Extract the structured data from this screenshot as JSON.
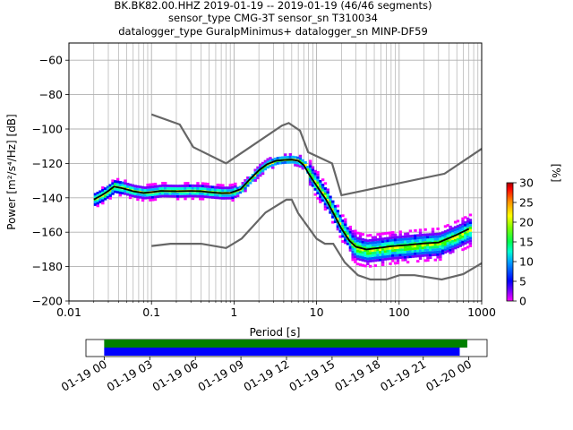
{
  "title_lines": [
    "BK.BK82.00.HHZ   2019-01-19 -- 2019-01-19  (46/46 segments)",
    "sensor_type CMG-3T sensor_sn T310034",
    "datalogger_type GuralpMinimus+ datalogger_sn MINP-DF59"
  ],
  "chart_data": {
    "type": "heatmap",
    "xlabel": "Period [s]",
    "ylabel": "Power [m²/s⁴/Hz] [dB]",
    "x_scale": "log",
    "xlim": [
      0.01,
      1000
    ],
    "ylim": [
      -200,
      -50
    ],
    "x_ticks": [
      0.01,
      0.1,
      1,
      10,
      100,
      1000
    ],
    "x_tick_labels": [
      "0.01",
      "0.1",
      "1",
      "10",
      "100",
      "1000"
    ],
    "y_ticks": [
      -200,
      -180,
      -160,
      -140,
      -120,
      -100,
      -80,
      -60
    ],
    "y_tick_labels": [
      "−200",
      "−180",
      "−160",
      "−140",
      "−120",
      "−100",
      "−80",
      "−60"
    ],
    "grid": true,
    "noise_model_high": [
      [
        0.1,
        -91.5
      ],
      [
        0.22,
        -97.4
      ],
      [
        0.32,
        -110.5
      ],
      [
        0.8,
        -120
      ],
      [
        3.8,
        -98
      ],
      [
        4.6,
        -96.5
      ],
      [
        6.3,
        -101
      ],
      [
        7.9,
        -113.5
      ],
      [
        15.4,
        -120
      ],
      [
        20,
        -138.5
      ],
      [
        354.8,
        -126
      ],
      [
        1000,
        -111.5
      ]
    ],
    "noise_model_low": [
      [
        0.1,
        -168
      ],
      [
        0.17,
        -166.7
      ],
      [
        0.4,
        -166.7
      ],
      [
        0.8,
        -169.2
      ],
      [
        1.24,
        -163.7
      ],
      [
        2.4,
        -148.6
      ],
      [
        4.3,
        -141.1
      ],
      [
        5.0,
        -141.1
      ],
      [
        6.0,
        -149
      ],
      [
        10,
        -163.8
      ],
      [
        12.6,
        -166.7
      ],
      [
        15.9,
        -166.7
      ],
      [
        21.9,
        -177.5
      ],
      [
        31.6,
        -185
      ],
      [
        45,
        -187.5
      ],
      [
        70,
        -187.5
      ],
      [
        101,
        -185
      ],
      [
        154,
        -185
      ],
      [
        328,
        -187.5
      ],
      [
        600,
        -184.4
      ],
      [
        1000,
        -178
      ]
    ],
    "mode_curve": [
      [
        0.02,
        -141
      ],
      [
        0.025,
        -138.5
      ],
      [
        0.03,
        -136
      ],
      [
        0.035,
        -133.5
      ],
      [
        0.045,
        -134.5
      ],
      [
        0.06,
        -136.2
      ],
      [
        0.08,
        -137.2
      ],
      [
        0.1,
        -136.7
      ],
      [
        0.13,
        -136
      ],
      [
        0.2,
        -136.2
      ],
      [
        0.3,
        -136
      ],
      [
        0.4,
        -136.2
      ],
      [
        0.5,
        -136.7
      ],
      [
        0.7,
        -137.3
      ],
      [
        0.9,
        -137.2
      ],
      [
        1.2,
        -135
      ],
      [
        1.5,
        -130
      ],
      [
        2.0,
        -124
      ],
      [
        2.5,
        -120.5
      ],
      [
        3.2,
        -118.5
      ],
      [
        4.0,
        -118
      ],
      [
        5.0,
        -117.8
      ],
      [
        6.0,
        -118.5
      ],
      [
        7.0,
        -121
      ],
      [
        8.0,
        -126
      ],
      [
        10,
        -133
      ],
      [
        13,
        -141
      ],
      [
        16,
        -149
      ],
      [
        20,
        -158
      ],
      [
        25,
        -165
      ],
      [
        30,
        -168.5
      ],
      [
        40,
        -170
      ],
      [
        60,
        -169
      ],
      [
        80,
        -168.2
      ],
      [
        120,
        -167.5
      ],
      [
        200,
        -166.5
      ],
      [
        300,
        -166
      ],
      [
        500,
        -161.5
      ],
      [
        700,
        -158
      ]
    ],
    "scatter_bands": [
      {
        "p_range": [
          0.02,
          0.045
        ],
        "center_shift": 0,
        "spread": 3.5
      },
      {
        "p_range": [
          0.045,
          1.0
        ],
        "center_shift": 0,
        "spread": 3.0
      },
      {
        "p_range": [
          1.0,
          8.0
        ],
        "center_shift": 0,
        "spread": 2.5
      },
      {
        "p_range": [
          8.0,
          25.0
        ],
        "center_shift": 0,
        "spread": 5.0
      },
      {
        "p_range": [
          25.0,
          700
        ],
        "center_shift": -1,
        "spread": 6.0
      }
    ],
    "colorbar": {
      "label": "[%]",
      "ticks": [
        0,
        5,
        10,
        15,
        20,
        25,
        30
      ],
      "range": [
        0,
        30
      ]
    }
  },
  "timeline": {
    "labels": [
      "01-19 00",
      "01-19 03",
      "01-19 06",
      "01-19 09",
      "01-19 12",
      "01-19 15",
      "01-19 18",
      "01-19 21",
      "01-20 00"
    ],
    "hours": [
      0,
      3,
      6,
      9,
      12,
      15,
      18,
      21,
      24
    ],
    "green_bar_hours": [
      0,
      23.9
    ],
    "blue_bar_hours": [
      0,
      23.4
    ],
    "range_hours": [
      -1.2,
      25.2
    ]
  }
}
